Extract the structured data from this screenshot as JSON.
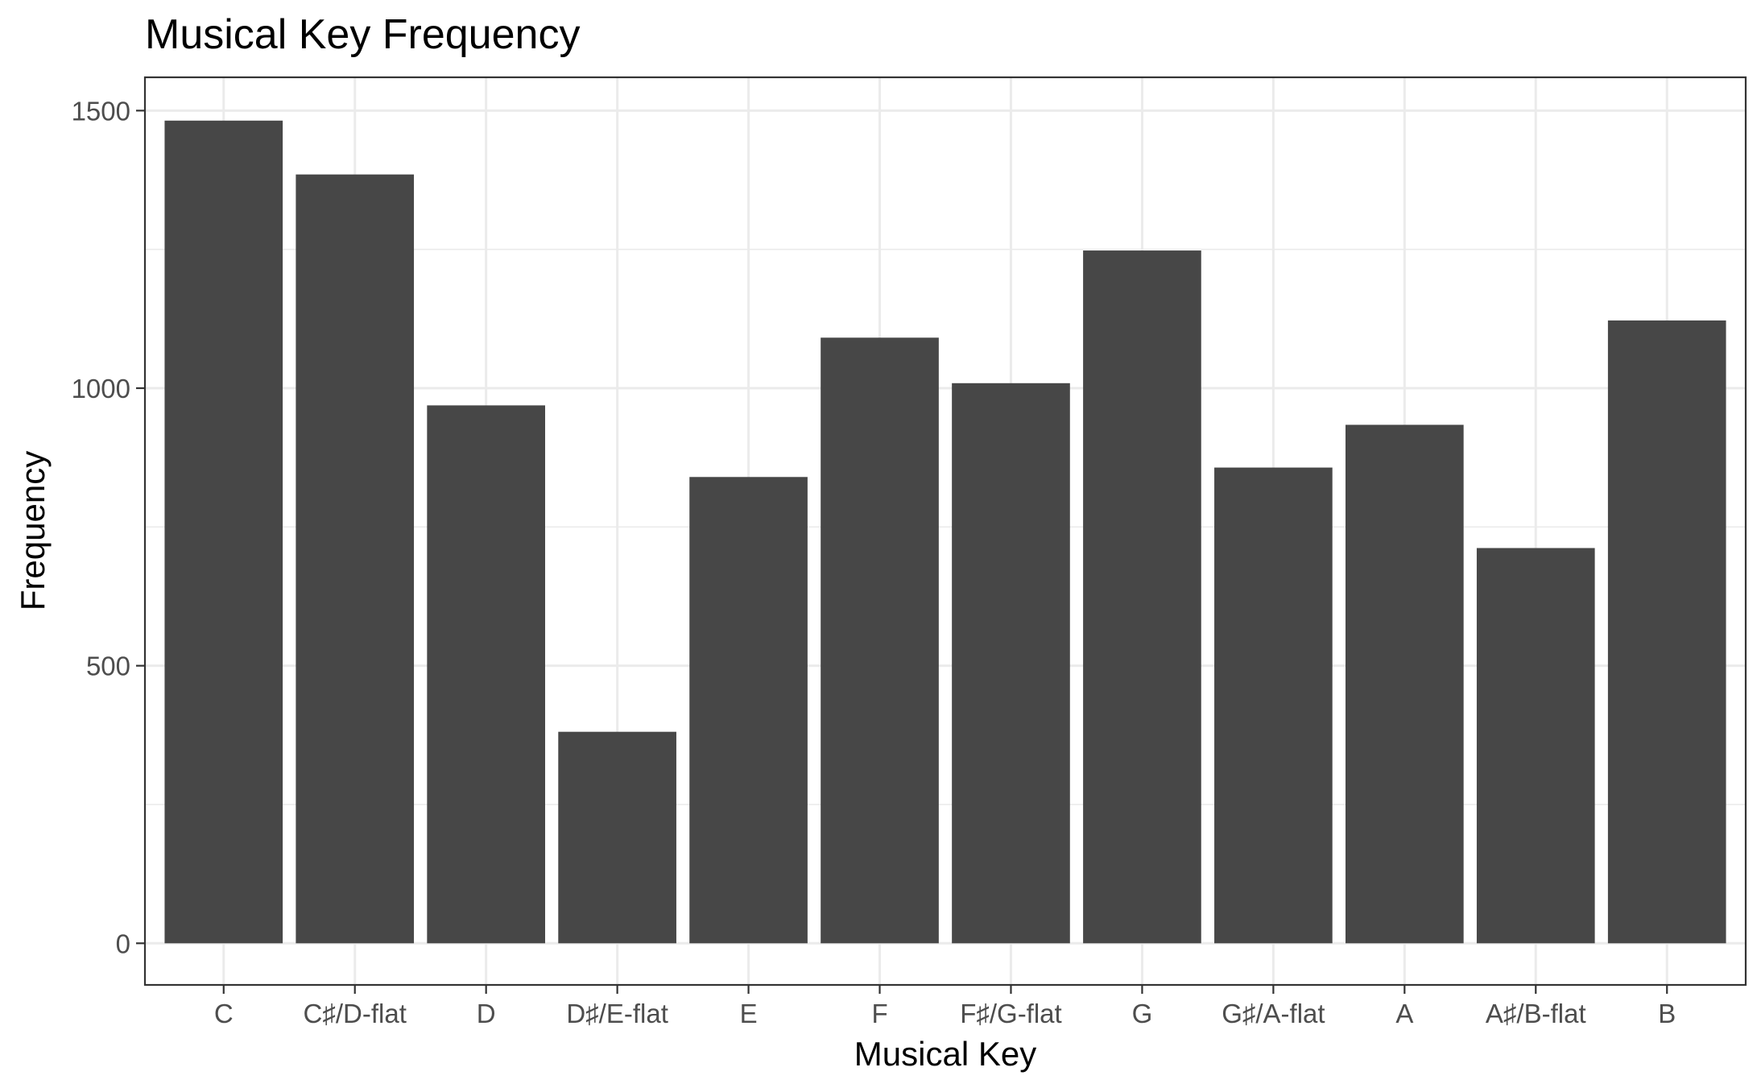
{
  "chart_data": {
    "type": "bar",
    "title": "Musical Key Frequency",
    "xlabel": "Musical Key",
    "ylabel": "Frequency",
    "categories": [
      "C",
      "C♯/D-flat",
      "D",
      "D♯/E-flat",
      "E",
      "F",
      "F♯/G-flat",
      "G",
      "G♯/A-flat",
      "A",
      "A♯/B-flat",
      "B"
    ],
    "values": [
      1482,
      1385,
      969,
      381,
      840,
      1091,
      1009,
      1248,
      857,
      934,
      712,
      1122
    ],
    "ylim": [
      -75,
      1560
    ],
    "yticks": [
      0,
      500,
      1000,
      1500
    ],
    "ytick_labels": [
      "0",
      "500",
      "1000",
      "1500"
    ],
    "bar_color": "#474747",
    "grid": true,
    "legend": "none"
  }
}
